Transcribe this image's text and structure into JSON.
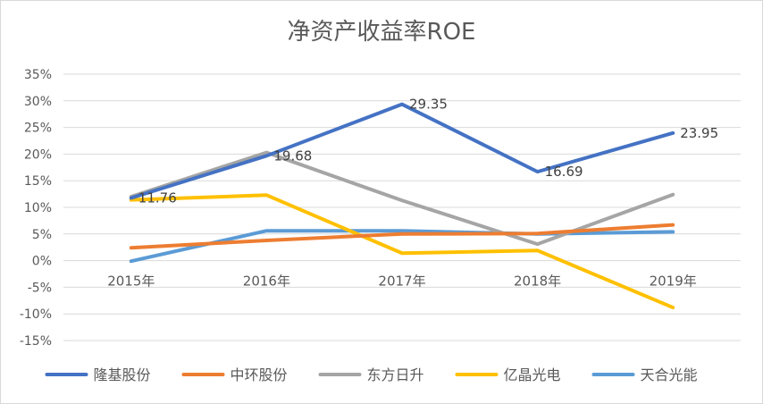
{
  "chart_data": {
    "type": "line",
    "title": "净资产收益率ROE",
    "xlabel": "",
    "ylabel": "",
    "categories": [
      "2015年",
      "2016年",
      "2017年",
      "2018年",
      "2019年"
    ],
    "ylim": [
      -15,
      35
    ],
    "yticks": [
      35,
      30,
      25,
      20,
      15,
      10,
      5,
      0,
      -5,
      -10,
      -15
    ],
    "ytick_labels": [
      "35%",
      "30%",
      "25%",
      "20%",
      "15%",
      "10%",
      "5%",
      "0%",
      "-5%",
      "-10%",
      "-15%"
    ],
    "grid": true,
    "legend_position": "bottom",
    "series": [
      {
        "name": "隆基股份",
        "color": "#4472C4",
        "values": [
          11.76,
          19.68,
          29.35,
          16.69,
          23.95
        ]
      },
      {
        "name": "中环股份",
        "color": "#ED7D31",
        "values": [
          2.4,
          3.8,
          5.0,
          5.1,
          6.7
        ]
      },
      {
        "name": "东方日升",
        "color": "#A5A5A5",
        "values": [
          12.0,
          20.3,
          11.3,
          3.1,
          12.4
        ]
      },
      {
        "name": "亿晶光电",
        "color": "#FFC000",
        "values": [
          11.4,
          12.3,
          1.4,
          1.9,
          -8.8
        ]
      },
      {
        "name": "天合光能",
        "color": "#5B9BD5",
        "values": [
          -0.1,
          5.6,
          5.6,
          5.0,
          5.4
        ]
      }
    ],
    "data_labels": [
      {
        "series": 0,
        "index": 0,
        "text": "11.76"
      },
      {
        "series": 0,
        "index": 1,
        "text": "19.68"
      },
      {
        "series": 0,
        "index": 2,
        "text": "29.35"
      },
      {
        "series": 0,
        "index": 3,
        "text": "16.69"
      },
      {
        "series": 0,
        "index": 4,
        "text": "23.95"
      }
    ]
  }
}
